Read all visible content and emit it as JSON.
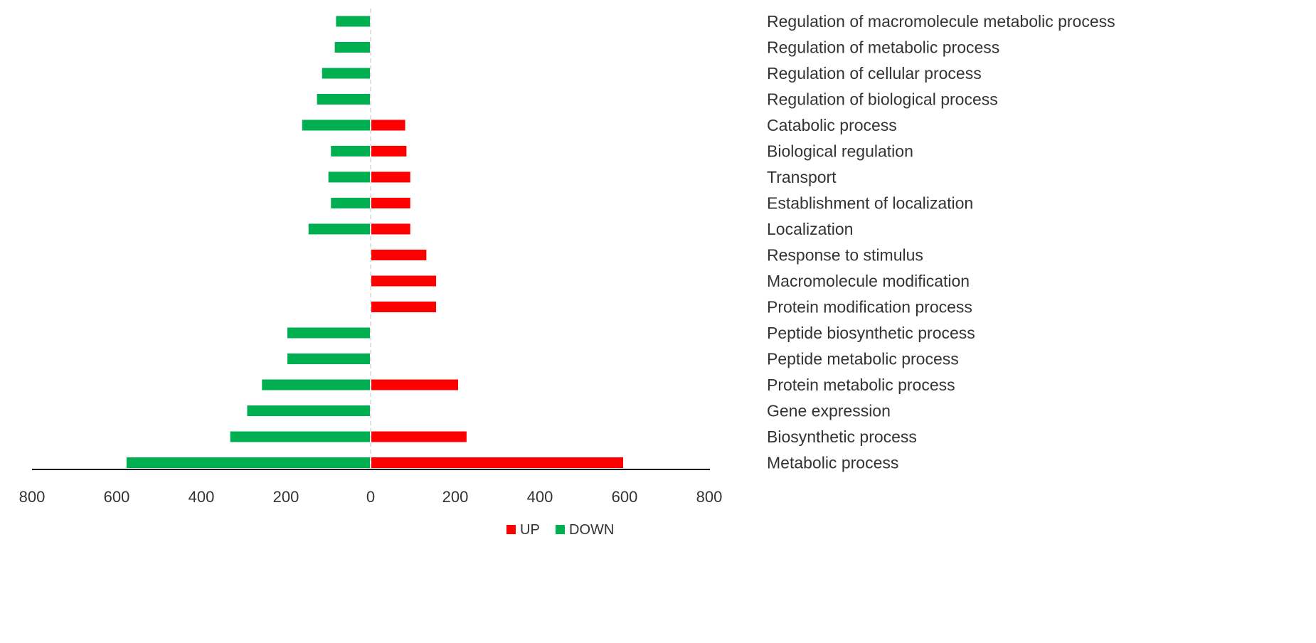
{
  "chart_data": {
    "type": "bar",
    "orientation": "horizontal",
    "layout": "diverging",
    "categories": [
      "Regulation of macromolecule metabolic process",
      "Regulation of metabolic process",
      "Regulation of cellular process",
      "Regulation of biological process",
      "Catabolic process",
      "Biological regulation",
      "Transport",
      "Establishment of localization",
      "Localization",
      "Response to stimulus",
      "Macromolecule modification",
      "Protein modification process",
      "Peptide biosynthetic process",
      "Peptide metabolic process",
      "Protein metabolic process",
      "Gene expression",
      "Biosynthetic process",
      "Metabolic process"
    ],
    "series": [
      {
        "name": "UP",
        "color": "#ff0000",
        "values": [
          0,
          0,
          0,
          0,
          80,
          83,
          92,
          92,
          92,
          130,
          153,
          153,
          0,
          0,
          205,
          0,
          225,
          595
        ]
      },
      {
        "name": "DOWN",
        "color": "#00b050",
        "values": [
          80,
          83,
          113,
          125,
          160,
          92,
          98,
          92,
          145,
          0,
          0,
          0,
          195,
          195,
          255,
          290,
          330,
          575
        ]
      }
    ],
    "xlim": [
      -800,
      800
    ],
    "x_tick_values": [
      -800,
      -600,
      -400,
      -200,
      0,
      200,
      400,
      600,
      800
    ],
    "x_tick_labels": [
      "800",
      "600",
      "400",
      "200",
      "0",
      "200",
      "400",
      "600",
      "800"
    ],
    "grid": false,
    "legend_position": "bottom",
    "title": "",
    "xlabel": "",
    "ylabel": ""
  }
}
